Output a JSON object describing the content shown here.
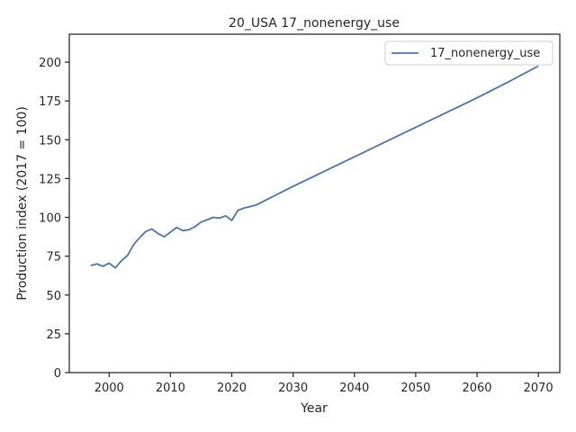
{
  "chart_data": {
    "type": "line",
    "title": "20_USA 17_nonenergy_use",
    "xlabel": "Year",
    "ylabel": "Production index (2017 = 100)",
    "xlim": [
      1993.5,
      2073.5
    ],
    "ylim": [
      0,
      218
    ],
    "xticks": [
      2000,
      2010,
      2020,
      2030,
      2040,
      2050,
      2060,
      2070
    ],
    "yticks": [
      0,
      25,
      50,
      75,
      100,
      125,
      150,
      175,
      200
    ],
    "grid": false,
    "legend_position": "top-right",
    "series": [
      {
        "name": "17_nonenergy_use",
        "color": "#4c72b0",
        "x": [
          1997,
          1998,
          1999,
          2000,
          2001,
          2002,
          2003,
          2004,
          2005,
          2006,
          2007,
          2008,
          2009,
          2010,
          2011,
          2012,
          2013,
          2014,
          2015,
          2016,
          2017,
          2018,
          2019,
          2020,
          2021,
          2022,
          2023,
          2024,
          2025,
          2026,
          2027,
          2028,
          2029,
          2030,
          2035,
          2040,
          2045,
          2050,
          2055,
          2060,
          2065,
          2070
        ],
        "y": [
          69,
          70,
          68.5,
          70.5,
          67.5,
          72,
          75.5,
          82.5,
          87,
          91,
          92.5,
          89.5,
          87.5,
          90.5,
          93.5,
          91.5,
          92,
          94,
          97,
          98.5,
          100,
          99.5,
          101,
          98,
          104.5,
          106,
          107,
          108,
          110,
          112,
          114,
          116,
          118,
          120,
          129.5,
          139,
          148.5,
          158,
          167.5,
          177,
          187,
          197.5
        ]
      }
    ]
  }
}
